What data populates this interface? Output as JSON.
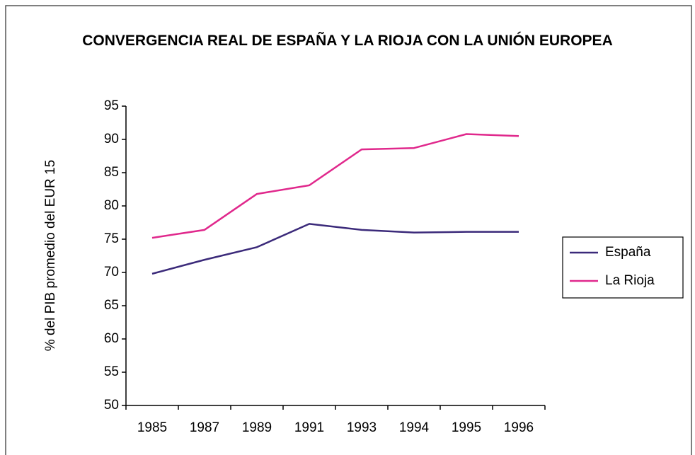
{
  "chart_data": {
    "type": "line",
    "title": "CONVERGENCIA REAL DE ESPAÑA Y LA RIOJA CON LA UNIÓN EUROPEA",
    "y_label": "% del PIB promedio del EUR 15",
    "categories": [
      "1985",
      "1987",
      "1989",
      "1991",
      "1993",
      "1994",
      "1995",
      "1996"
    ],
    "series": [
      {
        "name": "España",
        "color": "#3b2a7a",
        "values": [
          69.8,
          71.9,
          73.8,
          77.3,
          76.4,
          76.0,
          76.1,
          76.1
        ]
      },
      {
        "name": "La Rioja",
        "color": "#e0288c",
        "values": [
          75.2,
          76.4,
          81.8,
          83.1,
          88.5,
          88.7,
          90.8,
          90.5
        ]
      }
    ],
    "ylim": [
      50,
      95
    ],
    "yticks": [
      50,
      55,
      60,
      65,
      70,
      75,
      80,
      85,
      90,
      95
    ],
    "grid": false,
    "legend": "right"
  }
}
